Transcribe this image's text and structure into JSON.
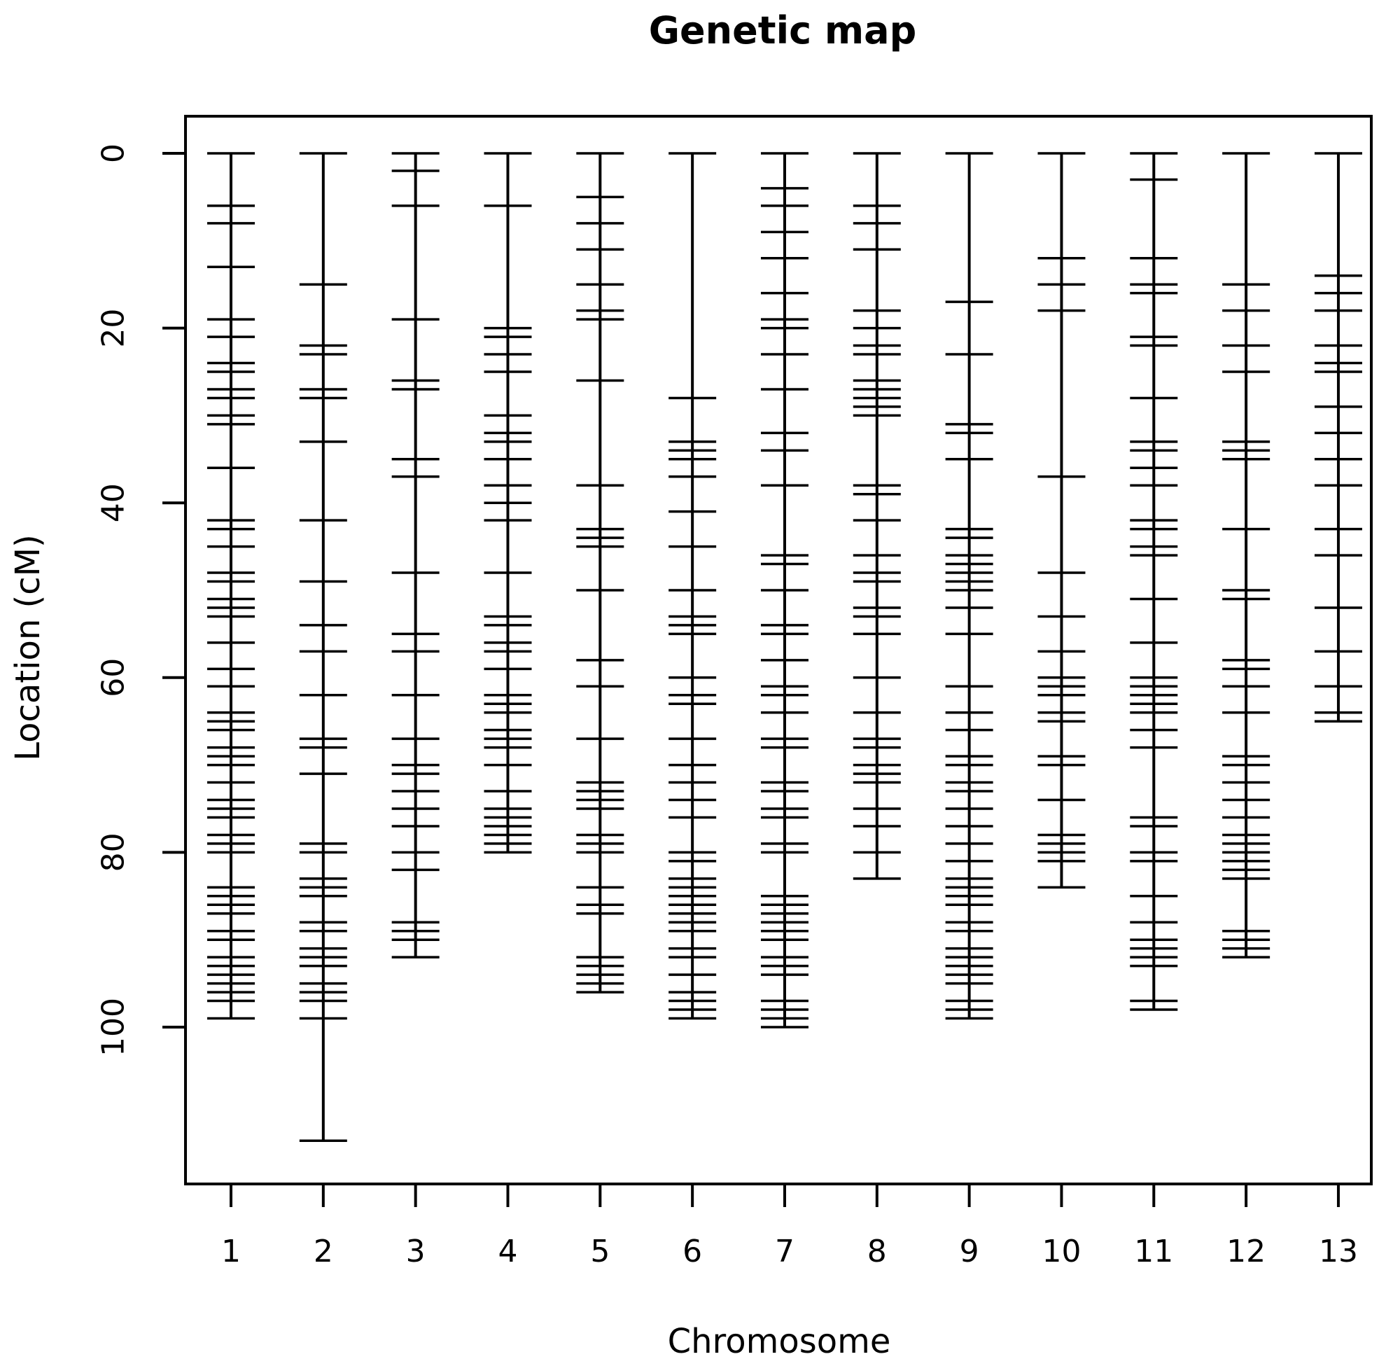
{
  "chart_data": {
    "type": "genetic-map",
    "title": "Genetic map",
    "xlabel": "Chromosome",
    "ylabel": "Location (cM)",
    "ylim": [
      0,
      113
    ],
    "y_ticks": [
      0,
      20,
      40,
      60,
      80,
      100
    ],
    "y_reversed": true,
    "grid": false,
    "chromosomes": [
      {
        "name": "1",
        "length": 99,
        "markers": [
          0,
          6,
          8,
          13,
          19,
          21,
          24,
          25,
          27,
          28,
          30,
          31,
          36,
          42,
          43,
          45,
          48,
          49,
          51,
          52,
          53,
          56,
          59,
          61,
          64,
          65,
          66,
          68,
          69,
          70,
          72,
          74,
          75,
          76,
          78,
          79,
          80,
          84,
          85,
          86,
          87,
          89,
          90,
          92,
          93,
          94,
          95,
          96,
          97,
          99
        ]
      },
      {
        "name": "2",
        "length": 113,
        "markers": [
          0,
          15,
          22,
          23,
          27,
          28,
          33,
          42,
          49,
          54,
          57,
          62,
          67,
          68,
          71,
          79,
          80,
          83,
          84,
          85,
          88,
          89,
          91,
          92,
          93,
          95,
          96,
          97,
          99,
          113
        ]
      },
      {
        "name": "3",
        "length": 92,
        "markers": [
          0,
          2,
          6,
          19,
          26,
          27,
          35,
          37,
          48,
          55,
          57,
          62,
          67,
          70,
          71,
          73,
          75,
          77,
          80,
          82,
          88,
          89,
          90,
          92
        ]
      },
      {
        "name": "4",
        "length": 80,
        "markers": [
          0,
          6,
          20,
          21,
          23,
          25,
          30,
          32,
          33,
          35,
          38,
          40,
          42,
          48,
          53,
          54,
          56,
          57,
          59,
          62,
          63,
          64,
          66,
          67,
          68,
          70,
          73,
          75,
          76,
          77,
          78,
          79,
          80
        ]
      },
      {
        "name": "5",
        "length": 96,
        "markers": [
          0,
          5,
          8,
          11,
          15,
          18,
          19,
          26,
          38,
          43,
          44,
          45,
          50,
          58,
          61,
          67,
          72,
          73,
          74,
          75,
          78,
          79,
          80,
          84,
          86,
          87,
          92,
          93,
          94,
          95,
          96
        ]
      },
      {
        "name": "6",
        "length": 99,
        "markers": [
          0,
          28,
          33,
          34,
          35,
          37,
          41,
          45,
          50,
          53,
          54,
          55,
          60,
          62,
          63,
          67,
          70,
          72,
          74,
          76,
          80,
          81,
          83,
          84,
          85,
          86,
          87,
          88,
          89,
          91,
          92,
          94,
          96,
          97,
          98,
          99
        ]
      },
      {
        "name": "7",
        "length": 100,
        "markers": [
          0,
          4,
          6,
          9,
          12,
          16,
          19,
          20,
          23,
          27,
          32,
          34,
          38,
          46,
          47,
          50,
          54,
          55,
          58,
          61,
          62,
          64,
          67,
          68,
          72,
          73,
          75,
          76,
          79,
          80,
          85,
          86,
          87,
          88,
          89,
          90,
          92,
          93,
          94,
          97,
          98,
          99,
          100
        ]
      },
      {
        "name": "8",
        "length": 83,
        "markers": [
          0,
          6,
          8,
          11,
          18,
          20,
          22,
          23,
          26,
          27,
          28,
          29,
          30,
          38,
          39,
          42,
          46,
          48,
          49,
          52,
          53,
          55,
          60,
          64,
          67,
          68,
          70,
          71,
          72,
          75,
          77,
          80,
          83
        ]
      },
      {
        "name": "9",
        "length": 99,
        "markers": [
          0,
          17,
          23,
          31,
          32,
          35,
          43,
          44,
          46,
          47,
          48,
          49,
          50,
          52,
          55,
          61,
          64,
          66,
          69,
          70,
          72,
          73,
          75,
          77,
          79,
          81,
          83,
          84,
          85,
          86,
          88,
          89,
          91,
          92,
          93,
          94,
          95,
          97,
          98,
          99
        ]
      },
      {
        "name": "10",
        "length": 84,
        "markers": [
          0,
          12,
          15,
          18,
          37,
          48,
          53,
          57,
          60,
          61,
          62,
          64,
          65,
          69,
          70,
          74,
          78,
          79,
          80,
          81,
          84
        ]
      },
      {
        "name": "11",
        "length": 98,
        "markers": [
          0,
          3,
          12,
          15,
          16,
          21,
          22,
          28,
          33,
          34,
          36,
          38,
          42,
          43,
          45,
          46,
          51,
          56,
          60,
          61,
          62,
          63,
          64,
          66,
          68,
          76,
          77,
          80,
          81,
          85,
          88,
          90,
          91,
          92,
          93,
          97,
          98
        ]
      },
      {
        "name": "12",
        "length": 92,
        "markers": [
          0,
          15,
          18,
          22,
          25,
          33,
          34,
          35,
          43,
          50,
          51,
          58,
          59,
          61,
          64,
          69,
          70,
          72,
          74,
          76,
          78,
          79,
          80,
          81,
          82,
          83,
          89,
          90,
          91,
          92
        ]
      },
      {
        "name": "13",
        "length": 65,
        "markers": [
          0,
          14,
          16,
          18,
          22,
          24,
          25,
          29,
          32,
          35,
          38,
          43,
          46,
          52,
          57,
          61,
          64,
          65
        ]
      }
    ]
  }
}
